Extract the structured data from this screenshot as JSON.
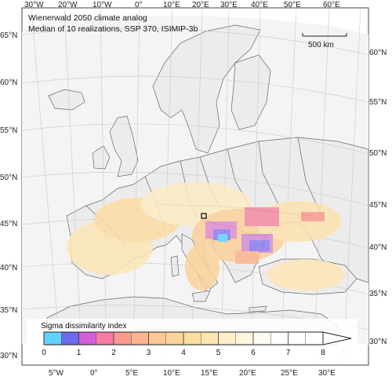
{
  "map": {
    "title_line1": "Wienerwald 2050 climate analog",
    "title_line2": "Median of 10 realizations, SSP 370, ISIMIP-3b",
    "scale_bar_label": "500 km",
    "colors": {
      "land": "#f2f2f2",
      "sea": "#ffffff",
      "border": "#555555",
      "graticule": "#bdbdbd",
      "reference_marker": "#000000"
    }
  },
  "axes": {
    "top_labels": [
      "30°W",
      "20°W",
      "10°W",
      "0°",
      "10°E",
      "20°E",
      "30°E",
      "40°E",
      "50°E",
      "60°E"
    ],
    "left_labels": [
      "65°N",
      "60°N",
      "55°N",
      "50°N",
      "45°N",
      "40°N",
      "35°N",
      "30°N"
    ],
    "right_labels": [
      "60°N",
      "55°N",
      "50°N",
      "45°N",
      "40°N",
      "35°N",
      "30°N"
    ],
    "bottom_labels": [
      "5°W",
      "0°",
      "5°E",
      "10°E",
      "15°E",
      "20°E",
      "25°E",
      "30°E"
    ]
  },
  "legend": {
    "title": "Sigma dissimilarity index",
    "tick_labels": [
      "0",
      "1",
      "2",
      "3",
      "4",
      "5",
      "6",
      "7",
      "8"
    ],
    "min": 0,
    "max": 8,
    "colors": [
      "#5fd3ff",
      "#6b6bf0",
      "#d35fd8",
      "#f77aa5",
      "#fa9a8e",
      "#fbb48f",
      "#fbc896",
      "#fcd39a",
      "#fdde9f",
      "#fee6b0",
      "#fff0c8",
      "#fff7e0",
      "#fffbf0",
      "#ffffff",
      "#ffffff",
      "#ffffff"
    ]
  }
}
